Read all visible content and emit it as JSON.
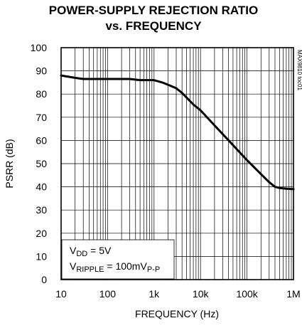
{
  "chart_data": {
    "type": "line",
    "title_line1": "POWER-SUPPLY REJECTION RATIO",
    "title_line2": "vs. FREQUENCY",
    "xlabel": "FREQUENCY  (Hz)",
    "ylabel": "PSRR (dB)",
    "xscale": "log",
    "xlim": [
      10,
      1000000
    ],
    "ylim": [
      0,
      100
    ],
    "x_ticks": [
      10,
      100,
      1000,
      10000,
      100000,
      1000000
    ],
    "x_tick_labels": [
      "10",
      "100",
      "1k",
      "10k",
      "100k",
      "1M"
    ],
    "y_ticks": [
      0,
      10,
      20,
      30,
      40,
      50,
      60,
      70,
      80,
      90,
      100
    ],
    "y_tick_labels": [
      "0",
      "10",
      "20",
      "30",
      "40",
      "50",
      "60",
      "70",
      "80",
      "90",
      "100"
    ],
    "grid": true,
    "series": [
      {
        "x": [
          10,
          20,
          30,
          50,
          100,
          200,
          300,
          500,
          1000,
          1500,
          2000,
          3000,
          4000,
          5000,
          7000,
          10000,
          20000,
          50000,
          100000,
          200000,
          300000,
          400000,
          500000,
          700000,
          1000000
        ],
        "y": [
          88,
          87,
          86.5,
          86.5,
          86.5,
          86.5,
          86.5,
          86,
          86,
          85,
          84,
          82.5,
          80.5,
          78.5,
          75.5,
          73,
          66.5,
          58,
          51.5,
          45.5,
          42,
          40,
          39.5,
          39.2,
          39
        ]
      }
    ],
    "annotations": {
      "vdd_main": "V",
      "vdd_sub": "DD",
      "vdd_rest": " = 5V",
      "ripple_main": "V",
      "ripple_sub": "RIPPLE",
      "ripple_mid": " = 100mV",
      "ripple_unit_sub": "P-P"
    },
    "side_note": "MAX9810 toc01"
  }
}
